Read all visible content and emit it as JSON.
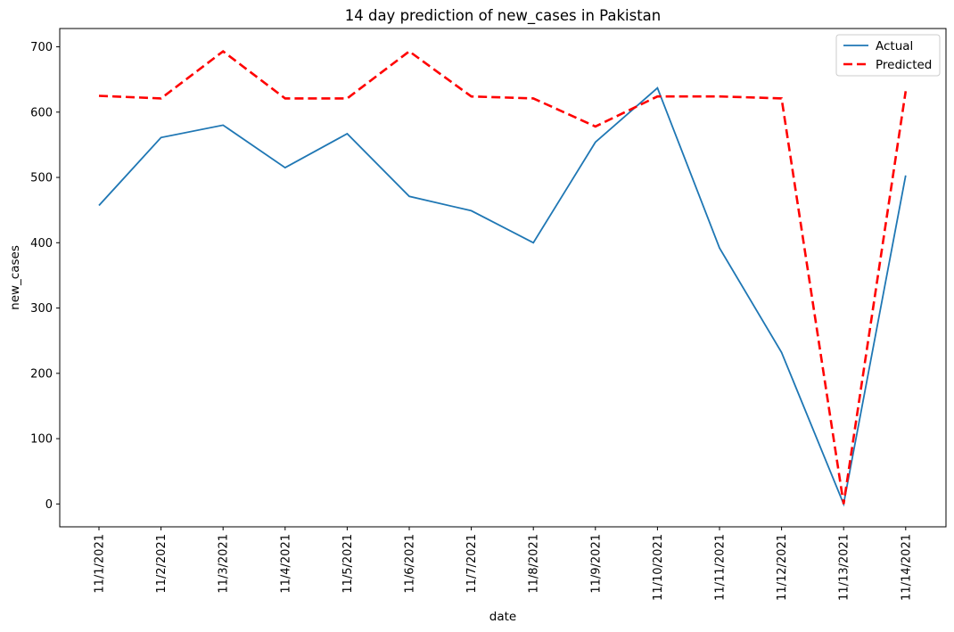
{
  "chart_data": {
    "type": "line",
    "title": "14 day prediction of new_cases in Pakistan",
    "xlabel": "date",
    "ylabel": "new_cases",
    "categories": [
      "11/1/2021",
      "11/2/2021",
      "11/3/2021",
      "11/4/2021",
      "11/5/2021",
      "11/6/2021",
      "11/7/2021",
      "11/8/2021",
      "11/9/2021",
      "11/10/2021",
      "11/11/2021",
      "11/12/2021",
      "11/13/2021",
      "11/14/2021"
    ],
    "ylim": [
      -35,
      728
    ],
    "yticks": [
      0,
      100,
      200,
      300,
      400,
      500,
      600,
      700
    ],
    "grid": false,
    "legend_position": "top-right",
    "series": [
      {
        "name": "Actual",
        "color": "#1f77b4",
        "style": "solid",
        "values": [
          457,
          561,
          580,
          515,
          567,
          471,
          449,
          400,
          554,
          637,
          392,
          232,
          0,
          503
        ]
      },
      {
        "name": "Predicted",
        "color": "#ff0000",
        "style": "dashed",
        "values": [
          625,
          621,
          693,
          621,
          621,
          693,
          624,
          621,
          578,
          624,
          624,
          621,
          0,
          632
        ]
      }
    ]
  }
}
